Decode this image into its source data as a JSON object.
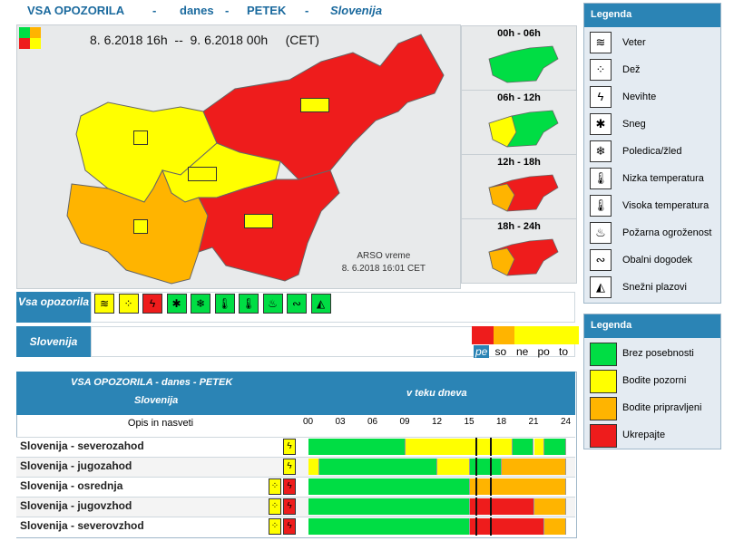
{
  "header": {
    "title": "VSA OPOZORILA",
    "sep": "-",
    "day_rel": "danes",
    "day": "PETEK",
    "region": "Slovenija"
  },
  "map": {
    "date_range": "8. 6.2018 16h  --  9. 6.2018 00h     (CET)",
    "source": "ARSO vreme",
    "issued": "8. 6.2018   16:01 CET"
  },
  "mini_maps": [
    {
      "label": "00h - 06h"
    },
    {
      "label": "06h - 12h"
    },
    {
      "label": "12h - 18h"
    },
    {
      "label": "18h - 24h"
    }
  ],
  "legend_icons": {
    "title": "Legenda",
    "items": [
      {
        "label": "Veter",
        "icon": "wind-icon"
      },
      {
        "label": "Dež",
        "icon": "rain-icon"
      },
      {
        "label": "Nevihte",
        "icon": "thunderstorm-icon"
      },
      {
        "label": "Sneg",
        "icon": "snow-icon"
      },
      {
        "label": "Poledica/žled",
        "icon": "ice-icon"
      },
      {
        "label": "Nizka temperatura",
        "icon": "low-temperature-icon"
      },
      {
        "label": "Visoka temperatura",
        "icon": "high-temperature-icon"
      },
      {
        "label": "Požarna ogroženost",
        "icon": "fire-icon"
      },
      {
        "label": "Obalni dogodek",
        "icon": "coastal-icon"
      },
      {
        "label": "Snežni plazovi",
        "icon": "avalanche-icon"
      }
    ]
  },
  "legend_colors": {
    "title": "Legenda",
    "items": [
      {
        "label": "Brez posebnosti",
        "color": "#00dd44"
      },
      {
        "label": "Bodite pozorni",
        "color": "#ffff00"
      },
      {
        "label": "Bodite pripravljeni",
        "color": "#ffb400"
      },
      {
        "label": "Ukrepajte",
        "color": "#ee1c1c"
      }
    ]
  },
  "strip": {
    "all_label": "Vsa opozorila",
    "region_label": "Slovenija",
    "days": [
      "pe",
      "so",
      "ne",
      "po",
      "to"
    ]
  },
  "table": {
    "title": "VSA OPOZORILA - danes - PETEK",
    "region": "Slovenija",
    "during": "v teku dneva",
    "opis": "Opis in nasveti",
    "hours": [
      "00",
      "03",
      "06",
      "09",
      "12",
      "15",
      "18",
      "21",
      "24"
    ],
    "rows": [
      {
        "name": "Slovenija - severozahod"
      },
      {
        "name": "Slovenija - jugozahod"
      },
      {
        "name": "Slovenija - osrednja"
      },
      {
        "name": "Slovenija - jugovzhod"
      },
      {
        "name": "Slovenija - severovzhod"
      }
    ]
  },
  "colors": {
    "green": "#00dd44",
    "yellow": "#ffff00",
    "orange": "#ffb400",
    "red": "#ee1c1c",
    "header_blue": "#2b84b5"
  }
}
